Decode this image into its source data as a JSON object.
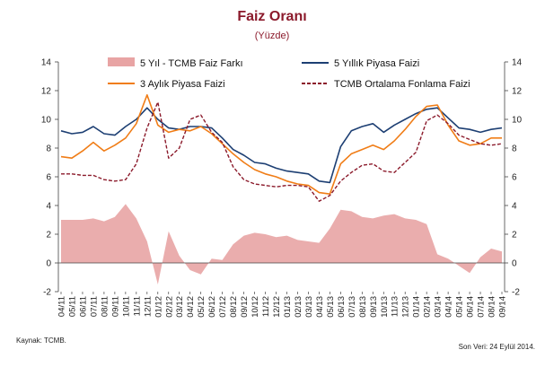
{
  "chart_data": {
    "type": "line",
    "title": "Faiz Oranı",
    "subtitle": "(Yüzde)",
    "ylim": [
      -2,
      14
    ],
    "yticks": [
      -2,
      0,
      2,
      4,
      6,
      8,
      10,
      12,
      14
    ],
    "ytick_labels": [
      "-2",
      "0",
      "2",
      "4",
      "6",
      "8",
      "10",
      "12",
      "14"
    ],
    "categories": [
      "04/11",
      "05/11",
      "06/11",
      "07/11",
      "08/11",
      "09/11",
      "10/11",
      "11/11",
      "12/11",
      "01/12",
      "02/12",
      "03/12",
      "04/12",
      "05/12",
      "06/12",
      "07/12",
      "08/12",
      "09/12",
      "10/12",
      "11/12",
      "12/12",
      "01/13",
      "02/13",
      "03/13",
      "04/13",
      "05/13",
      "06/13",
      "07/13",
      "08/13",
      "09/13",
      "10/13",
      "11/13",
      "12/13",
      "01/14",
      "02/14",
      "03/14",
      "04/14",
      "05/14",
      "06/14",
      "07/14",
      "08/14",
      "09/14"
    ],
    "series": [
      {
        "name": "5 Yıl - TCMB Faiz Farkı",
        "kind": "area",
        "color": "#e8a4a4",
        "values": [
          3.0,
          3.0,
          3.0,
          3.1,
          2.9,
          3.2,
          4.1,
          3.1,
          1.5,
          -1.5,
          2.2,
          0.5,
          -0.5,
          -0.8,
          0.3,
          0.2,
          1.3,
          1.9,
          2.1,
          2.0,
          1.8,
          1.9,
          1.6,
          1.5,
          1.4,
          2.4,
          3.7,
          3.6,
          3.2,
          3.1,
          3.3,
          3.4,
          3.1,
          3.0,
          2.7,
          0.6,
          0.3,
          -0.2,
          -0.7,
          0.4,
          1.0,
          0.8
        ]
      },
      {
        "name": "5 Yıllık Piyasa Faizi",
        "kind": "line",
        "color": "#1d3f73",
        "values": [
          9.2,
          9.0,
          9.1,
          9.5,
          9.0,
          8.9,
          9.5,
          10.0,
          10.8,
          10.0,
          9.4,
          9.3,
          9.5,
          9.5,
          9.4,
          8.7,
          7.9,
          7.5,
          7.0,
          6.9,
          6.6,
          6.4,
          6.3,
          6.2,
          5.7,
          5.6,
          8.1,
          9.2,
          9.5,
          9.7,
          9.1,
          9.6,
          10.0,
          10.4,
          10.7,
          10.8,
          10.1,
          9.4,
          9.3,
          9.1,
          9.3,
          9.4
        ]
      },
      {
        "name": "3 Aylık Piyasa Faizi",
        "kind": "line",
        "color": "#f07d17",
        "values": [
          7.4,
          7.3,
          7.8,
          8.4,
          7.8,
          8.2,
          8.7,
          9.7,
          11.7,
          9.6,
          9.1,
          9.3,
          9.2,
          9.5,
          9.0,
          8.3,
          7.6,
          7.0,
          6.5,
          6.2,
          6.0,
          5.7,
          5.5,
          5.4,
          4.9,
          4.8,
          6.9,
          7.6,
          7.9,
          8.2,
          7.9,
          8.5,
          9.3,
          10.2,
          10.9,
          11.0,
          9.6,
          8.5,
          8.2,
          8.3,
          8.7,
          8.7
        ]
      },
      {
        "name": "TCMB Ortalama Fonlama Faizi",
        "kind": "line",
        "dashed": true,
        "color": "#8b1a2b",
        "values": [
          6.2,
          6.2,
          6.1,
          6.1,
          5.8,
          5.7,
          5.8,
          6.9,
          9.4,
          11.2,
          7.3,
          8.0,
          10.0,
          10.3,
          9.1,
          8.4,
          6.7,
          5.8,
          5.5,
          5.4,
          5.3,
          5.4,
          5.4,
          5.3,
          4.3,
          4.7,
          5.7,
          6.3,
          6.8,
          6.9,
          6.4,
          6.3,
          7.0,
          7.7,
          9.9,
          10.3,
          9.7,
          8.9,
          8.6,
          8.3,
          8.2,
          8.3
        ]
      }
    ],
    "legend": [
      {
        "label": "5 Yıl - TCMB Faiz Farkı",
        "kind": "area",
        "color": "#e8a4a4"
      },
      {
        "label": "5 Yıllık Piyasa Faizi",
        "kind": "line",
        "color": "#1d3f73"
      },
      {
        "label": "3 Aylık Piyasa Faizi",
        "kind": "line",
        "color": "#f07d17"
      },
      {
        "label": "TCMB Ortalama Fonlama Faizi",
        "kind": "dashed",
        "color": "#8b1a2b"
      }
    ],
    "source": "Kaynak: TCMB.",
    "last_data": "Son Veri: 24 Eylül 2014."
  }
}
